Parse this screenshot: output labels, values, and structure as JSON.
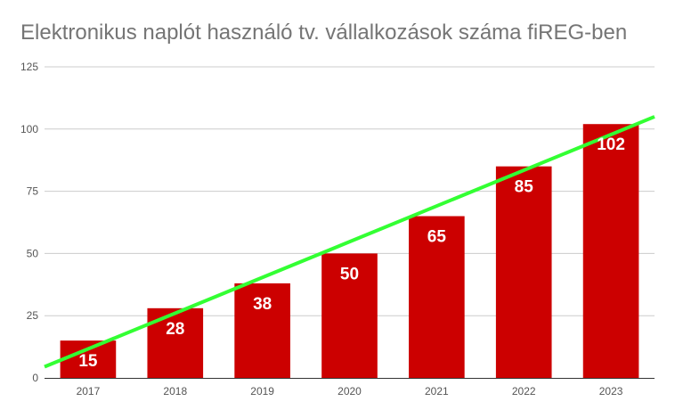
{
  "chart_data": {
    "type": "bar",
    "title": "Elektronikus naplót használó tv. vállalkozások száma fiREG-ben",
    "xlabel": "",
    "ylabel": "",
    "categories": [
      "2017",
      "2018",
      "2019",
      "2020",
      "2021",
      "2022",
      "2023"
    ],
    "series": [
      {
        "values": [
          15,
          28,
          38,
          50,
          65,
          85,
          102
        ]
      }
    ],
    "ylim": [
      0,
      125
    ],
    "yticks": [
      0,
      25,
      50,
      75,
      100,
      125
    ],
    "data_labels": [
      "15",
      "28",
      "38",
      "50",
      "65",
      "85",
      "102"
    ],
    "grid": true,
    "legend": "none",
    "trendline": {
      "type": "linear",
      "color": "#33ff33"
    },
    "colors": {
      "bar": "#cc0000",
      "grid": "#cccccc",
      "axis": "#333333"
    }
  }
}
